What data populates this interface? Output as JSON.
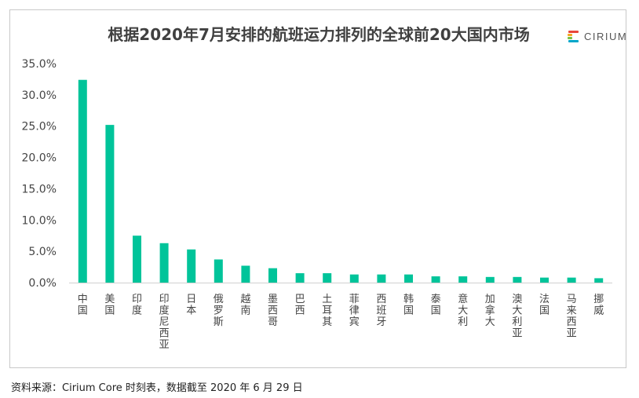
{
  "logo": {
    "text": "CIRIUM",
    "colors": [
      "#e8463a",
      "#f5a623",
      "#7ac143",
      "#00a6c9"
    ]
  },
  "source_note": "资料来源：Cirium Core 时刻表，数据截至 2020 年 6 月 29 日",
  "bar_color": "#00c49a",
  "chart_data": {
    "type": "bar",
    "title": "根据2020年7月安排的航班运力排列的全球前20大国内市场",
    "xlabel": "",
    "ylabel": "",
    "ylim": [
      0,
      35
    ],
    "y_ticks": [
      0,
      5,
      10,
      15,
      20,
      25,
      30,
      35
    ],
    "y_tick_labels": [
      "0.0%",
      "5.0%",
      "10.0%",
      "15.0%",
      "20.0%",
      "25.0%",
      "30.0%",
      "35.0%"
    ],
    "grid": false,
    "categories": [
      "中国",
      "美国",
      "印度",
      "印度尼西亚",
      "日本",
      "俄罗斯",
      "越南",
      "墨西哥",
      "巴西",
      "土耳其",
      "菲律宾",
      "西班牙",
      "韩国",
      "泰国",
      "意大利",
      "加拿大",
      "澳大利亚",
      "法国",
      "马来西亚",
      "挪威"
    ],
    "values": [
      32.4,
      25.2,
      7.5,
      6.3,
      5.3,
      3.7,
      2.7,
      2.3,
      1.5,
      1.5,
      1.3,
      1.3,
      1.3,
      1.0,
      1.0,
      0.9,
      0.9,
      0.8,
      0.8,
      0.7
    ]
  }
}
